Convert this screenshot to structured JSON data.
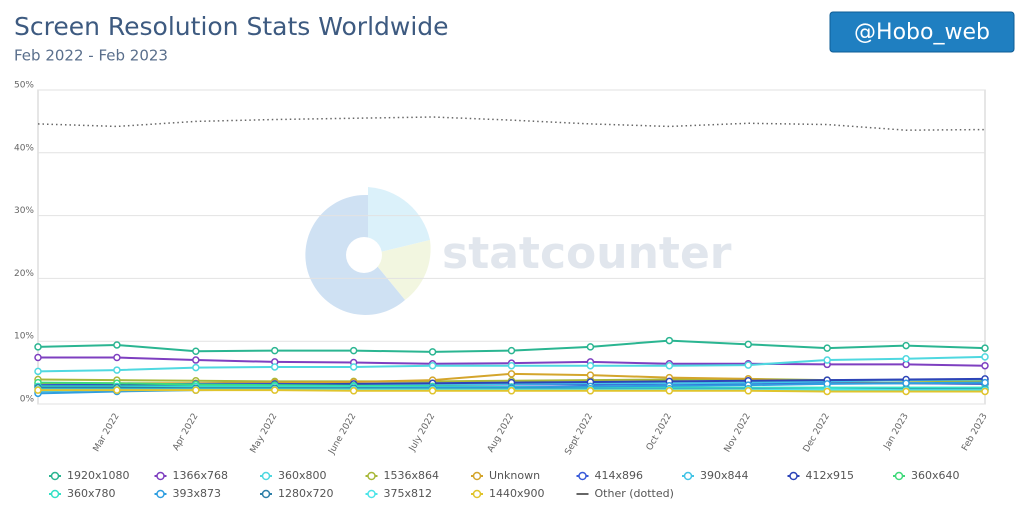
{
  "badge": "@Hobo_web",
  "watermark": "statcounter",
  "chart_data": {
    "type": "line",
    "title": "Screen Resolution Stats Worldwide",
    "subtitle": "Feb 2022 - Feb 2023",
    "categories": [
      null,
      "Mar 2022",
      "Apr 2022",
      "May 2022",
      "June 2022",
      "July 2022",
      "Aug 2022",
      "Sept 2022",
      "Oct 2022",
      "Nov 2022",
      "Dec 2022",
      "Jan 2023",
      "Feb 2023"
    ],
    "ylim": [
      0,
      50
    ],
    "yticks": [
      {
        "value": 0,
        "label": "0%"
      },
      {
        "value": 10,
        "label": "10%"
      },
      {
        "value": 20,
        "label": "20%"
      },
      {
        "value": 30,
        "label": "30%"
      },
      {
        "value": 40,
        "label": "40%"
      },
      {
        "value": 50,
        "label": "50%"
      }
    ],
    "grid": true,
    "series": [
      {
        "name": "1920x1080",
        "color": "#2ab591",
        "values": [
          9.1,
          9.4,
          8.4,
          8.5,
          8.5,
          8.3,
          8.5,
          9.1,
          10.1,
          9.5,
          8.9,
          9.3,
          8.9
        ]
      },
      {
        "name": "1366x768",
        "color": "#7e3fc0",
        "values": [
          7.4,
          7.4,
          7.0,
          6.7,
          6.6,
          6.4,
          6.5,
          6.7,
          6.4,
          6.4,
          6.3,
          6.3,
          6.1
        ]
      },
      {
        "name": "360x800",
        "color": "#4fd8e0",
        "values": [
          5.2,
          5.4,
          5.8,
          5.9,
          5.9,
          6.1,
          6.1,
          6.1,
          6.1,
          6.2,
          7.0,
          7.2,
          7.5
        ]
      },
      {
        "name": "1536x864",
        "color": "#a8b83a",
        "values": [
          3.9,
          3.8,
          3.7,
          3.6,
          3.6,
          3.6,
          3.7,
          3.8,
          3.9,
          4.0,
          3.8,
          3.7,
          3.6
        ]
      },
      {
        "name": "Unknown",
        "color": "#d4a52c",
        "values": [
          3.3,
          3.3,
          3.3,
          3.4,
          3.5,
          3.8,
          4.8,
          4.6,
          4.2,
          4.0,
          3.5,
          3.3,
          3.2
        ]
      },
      {
        "name": "414x896",
        "color": "#3a5bd9",
        "values": [
          3.0,
          3.1,
          3.2,
          3.2,
          3.1,
          3.1,
          3.1,
          3.1,
          3.2,
          3.2,
          3.3,
          3.3,
          3.2
        ]
      },
      {
        "name": "390x844",
        "color": "#43c4e6",
        "values": [
          2.0,
          2.3,
          2.5,
          2.7,
          2.9,
          3.1,
          3.2,
          3.3,
          3.3,
          3.4,
          3.6,
          3.8,
          3.9
        ]
      },
      {
        "name": "412x915",
        "color": "#2d44b8",
        "values": [
          2.9,
          3.0,
          3.0,
          3.1,
          3.2,
          3.3,
          3.4,
          3.5,
          3.6,
          3.7,
          3.8,
          3.9,
          4.0
        ]
      },
      {
        "name": "360x640",
        "color": "#3fd97a",
        "values": [
          3.4,
          3.3,
          3.1,
          3.0,
          2.9,
          2.8,
          2.7,
          2.6,
          2.6,
          2.5,
          2.4,
          2.4,
          2.3
        ]
      },
      {
        "name": "360x780",
        "color": "#33e0c6",
        "values": [
          2.8,
          2.8,
          2.8,
          2.8,
          2.8,
          2.7,
          2.7,
          2.7,
          2.6,
          2.6,
          2.6,
          2.6,
          2.6
        ]
      },
      {
        "name": "393x873",
        "color": "#2f9ee0",
        "values": [
          1.7,
          2.0,
          2.2,
          2.3,
          2.5,
          2.6,
          2.6,
          2.8,
          2.9,
          3.0,
          3.2,
          3.3,
          3.4
        ]
      },
      {
        "name": "1280x720",
        "color": "#2e7fa8",
        "values": [
          2.6,
          2.6,
          2.5,
          2.5,
          2.5,
          2.4,
          2.4,
          2.4,
          2.4,
          2.4,
          2.3,
          2.3,
          2.3
        ]
      },
      {
        "name": "375x812",
        "color": "#4de4e8",
        "values": [
          2.3,
          2.3,
          2.3,
          2.3,
          2.3,
          2.3,
          2.3,
          2.3,
          2.3,
          2.3,
          2.3,
          2.2,
          2.2
        ]
      },
      {
        "name": "1440x900",
        "color": "#e0c42c",
        "values": [
          2.2,
          2.2,
          2.2,
          2.2,
          2.1,
          2.1,
          2.1,
          2.1,
          2.1,
          2.1,
          2.0,
          2.0,
          2.0
        ]
      },
      {
        "name": "Other (dotted)",
        "color": "#666666",
        "style": "dotted",
        "values": [
          44.6,
          44.2,
          45.0,
          45.3,
          45.5,
          45.7,
          45.2,
          44.6,
          44.2,
          44.7,
          44.5,
          43.6,
          43.7
        ]
      }
    ]
  }
}
